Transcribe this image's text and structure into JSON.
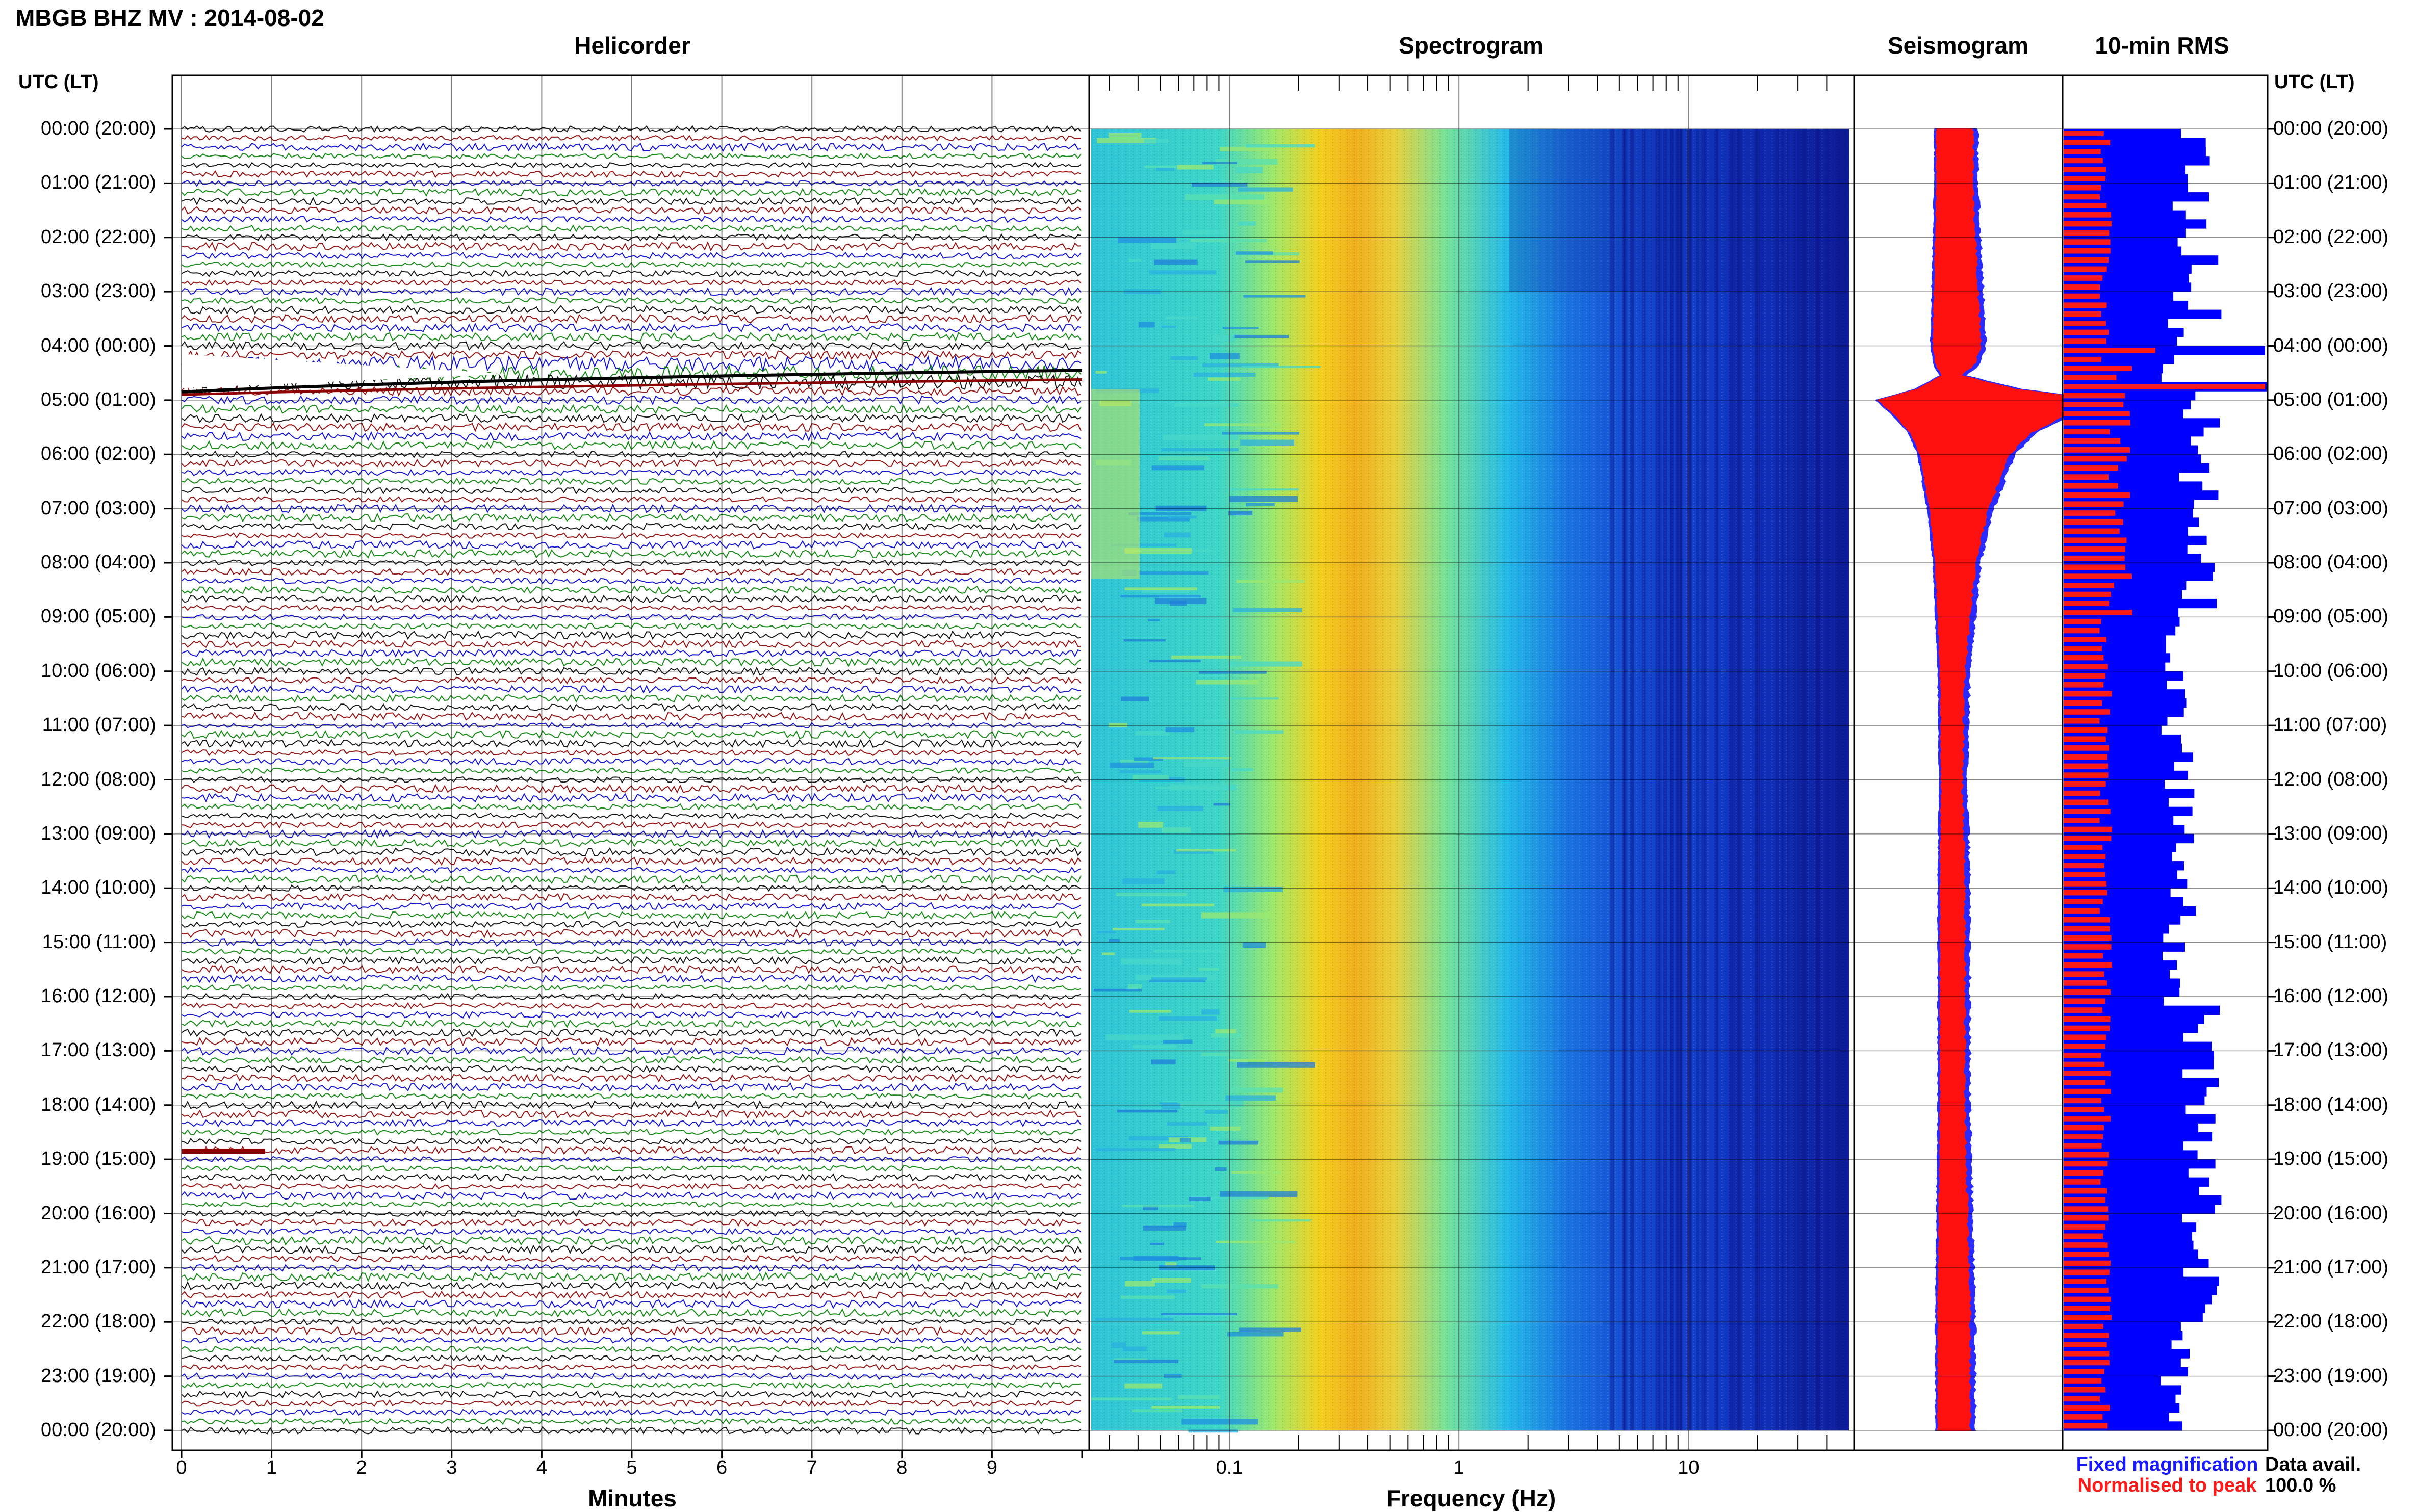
{
  "header": {
    "station_title": "MBGB BHZ MV : 2014-08-02",
    "utc_label_left": "UTC (LT)",
    "utc_label_right": "UTC (LT)"
  },
  "panels": {
    "helicorder": "Helicorder",
    "spectrogram": "Spectrogram",
    "seismogram": "Seismogram",
    "rms": "10-min RMS"
  },
  "time_ticks": [
    "00:00 (20:00)",
    "01:00 (21:00)",
    "02:00 (22:00)",
    "03:00 (23:00)",
    "04:00 (00:00)",
    "05:00 (01:00)",
    "06:00 (02:00)",
    "07:00 (03:00)",
    "08:00 (04:00)",
    "09:00 (05:00)",
    "10:00 (06:00)",
    "11:00 (07:00)",
    "12:00 (08:00)",
    "13:00 (09:00)",
    "14:00 (10:00)",
    "15:00 (11:00)",
    "16:00 (12:00)",
    "17:00 (13:00)",
    "18:00 (14:00)",
    "19:00 (15:00)",
    "20:00 (16:00)",
    "21:00 (17:00)",
    "22:00 (18:00)",
    "23:00 (19:00)",
    "00:00 (20:00)"
  ],
  "legend": {
    "fixed": "Fixed magnification",
    "normalised": "Normalised to peak",
    "fixed_color": "#1a1aff",
    "normalised_color": "#ff1a1a"
  },
  "availability": {
    "label": "Data avail.",
    "value": "100.0 %"
  },
  "colors": {
    "trace_cycle": [
      "#000000",
      "#8b0000",
      "#0000cc",
      "#008000"
    ],
    "seis_fixed": "#2a2aff",
    "seis_norm": "#ff1010",
    "rms_fixed": "#0000ff",
    "rms_norm": "#ff1a1a",
    "spectro_background": "#1212b0"
  },
  "chart_data": [
    {
      "type": "line",
      "panel": "helicorder",
      "title": "Helicorder",
      "xlabel": "Minutes",
      "x_ticks": [
        "0",
        "1",
        "2",
        "3",
        "4",
        "5",
        "6",
        "7",
        "8",
        "9"
      ],
      "xlim": [
        0,
        10
      ],
      "ylim_hours_utc": [
        0,
        24
      ],
      "lines_per_hour": 6,
      "note_events": [
        {
          "hour": 4.5,
          "description": "large signal with white gap"
        },
        {
          "hour": 19.0,
          "description": "short burst at left"
        }
      ]
    },
    {
      "type": "heatmap",
      "panel": "spectrogram",
      "title": "Spectrogram",
      "xlabel": "Frequency (Hz)",
      "x_scale": "log",
      "x_ticks": [
        "0.1",
        "1",
        "10"
      ],
      "xlim": [
        0.025,
        50
      ],
      "ylim_hours_utc": [
        0,
        24
      ],
      "dominant_band_hz": [
        0.2,
        0.45
      ]
    },
    {
      "type": "line",
      "panel": "seismogram",
      "title": "Seismogram",
      "series": [
        {
          "name": "Fixed magnification",
          "color": "#2a2aff"
        },
        {
          "name": "Normalised to peak",
          "color": "#ff1010"
        }
      ],
      "hours": [
        0,
        1,
        2,
        3,
        4,
        4.3,
        4.55,
        4.8,
        5.0,
        5.3,
        5.6,
        6,
        7,
        8,
        9,
        10,
        12,
        14,
        16,
        18,
        20,
        22,
        24
      ],
      "relative_amplitude": [
        0.06,
        0.06,
        0.07,
        0.08,
        0.09,
        0.07,
        0.02,
        0.22,
        0.55,
        0.4,
        0.28,
        0.2,
        0.12,
        0.07,
        0.05,
        0.03,
        0.02,
        0.03,
        0.03,
        0.03,
        0.04,
        0.05,
        0.05
      ]
    },
    {
      "type": "bar",
      "panel": "rms",
      "title": "10-min RMS",
      "bars_per_hour": 6,
      "series": [
        {
          "name": "Fixed magnification",
          "color": "#0000ff"
        },
        {
          "name": "Normalised to peak",
          "color": "#ff1a1a"
        }
      ],
      "rms_spikes_hours": [
        4.0,
        4.7
      ]
    }
  ]
}
